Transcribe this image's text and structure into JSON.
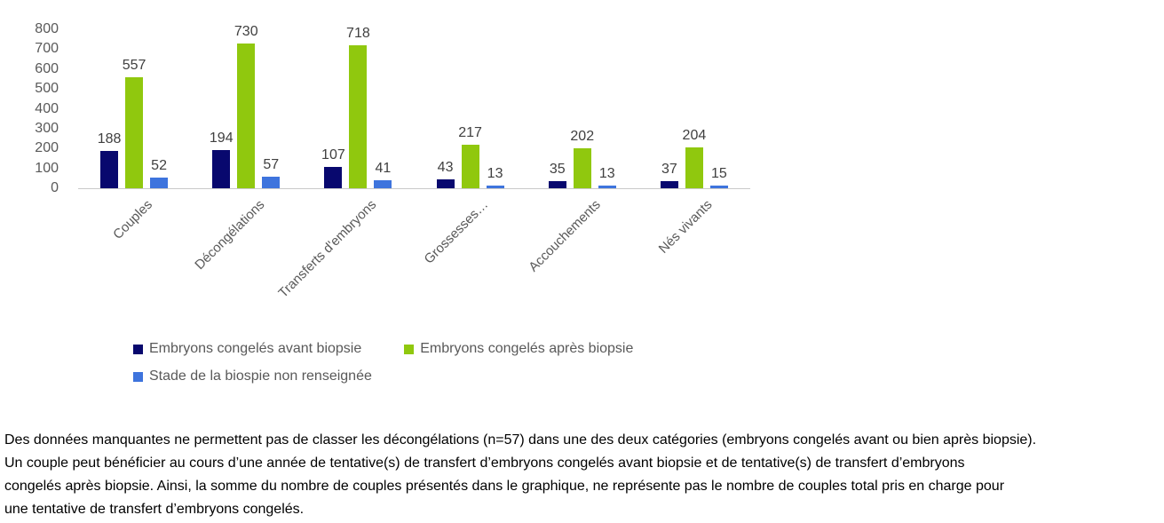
{
  "chart_data": {
    "type": "bar",
    "title": "",
    "categories": [
      "Couples",
      "Décongélations",
      "Transferts d'embryons",
      "Grossesses…",
      "Accouchements",
      "Nés vivants"
    ],
    "series": [
      {
        "name": "Embryons congelés avant biopsie",
        "color": "#08086E",
        "values": [
          188,
          194,
          107,
          43,
          35,
          37
        ]
      },
      {
        "name": "Embryons congelés après biopsie",
        "color": "#90C80E",
        "values": [
          557,
          730,
          718,
          217,
          202,
          204
        ]
      },
      {
        "name": "Stade de la biospie non renseignée",
        "color": "#3E74DD",
        "values": [
          52,
          57,
          41,
          13,
          13,
          15
        ]
      }
    ],
    "ylim": [
      0,
      800
    ],
    "yticks": [
      0,
      100,
      200,
      300,
      400,
      500,
      600,
      700,
      800
    ],
    "grid": false,
    "data_labels": true,
    "legend_position": "bottom-left",
    "axis_line_color": "#C9C9C9",
    "tick_label_color": "#595959",
    "data_label_color": "#404040",
    "category_label_color": "#595959"
  },
  "footnote": {
    "lines": [
      "Des données manquantes ne permettent pas de classer les décongélations (n=57) dans une des deux catégories (embryons congelés avant ou bien après biopsie).",
      "Un couple peut bénéficier au cours d’une année de tentative(s) de transfert d’embryons congelés avant biopsie et de tentative(s) de transfert d’embryons",
      "congelés après biopsie. Ainsi, la somme du nombre de couples présentés dans le graphique, ne représente pas le nombre de couples total pris en charge pour",
      "une tentative de transfert d’embryons congelés."
    ]
  }
}
